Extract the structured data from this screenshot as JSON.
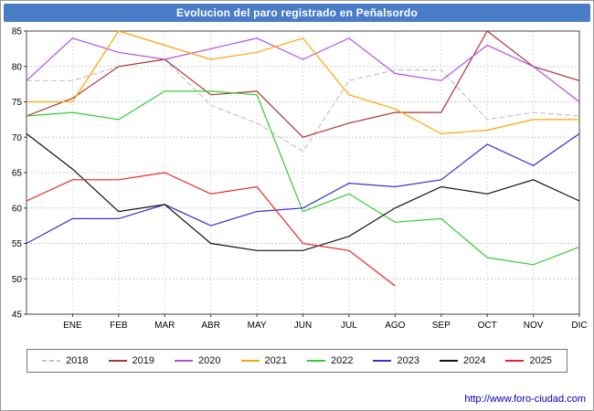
{
  "header": {
    "title": "Evolucion del paro registrado en Peñalsordo",
    "bg_color": "#4a7dc8",
    "text_color": "#ffffff"
  },
  "footer": {
    "url": "http://www.foro-ciudad.com",
    "color": "#0000bb"
  },
  "chart_data": {
    "type": "line",
    "title": "Evolucion del paro registrado en Peñalsordo",
    "ylabel": "",
    "xlabel": "",
    "ylim": [
      45,
      85
    ],
    "ytick_step": 5,
    "yticks": [
      45,
      50,
      55,
      60,
      65,
      70,
      75,
      80,
      85
    ],
    "grid": true,
    "legend_position": "bottom",
    "months": [
      "ENE",
      "FEB",
      "MAR",
      "ABR",
      "MAY",
      "JUN",
      "JUL",
      "AGO",
      "SEP",
      "OCT",
      "NOV",
      "DIC"
    ],
    "x_layout": "13 points per series: left plot edge + one per month ENE..DIC",
    "series": [
      {
        "name": "2018",
        "color": "#c4c4c4",
        "dash": true,
        "values": [
          78,
          78,
          80,
          81,
          74.5,
          72,
          68,
          78,
          79.5,
          79.5,
          72.5,
          73.5,
          73
        ]
      },
      {
        "name": "2019",
        "color": "#aa3333",
        "dash": false,
        "values": [
          73,
          75.5,
          80,
          81,
          76,
          76.5,
          70,
          72,
          73.5,
          73.5,
          85,
          80,
          78
        ]
      },
      {
        "name": "2020",
        "color": "#b450e0",
        "dash": false,
        "values": [
          78,
          84,
          82,
          81,
          82.5,
          84,
          81,
          84,
          79,
          78,
          83,
          80,
          75
        ]
      },
      {
        "name": "2021",
        "color": "#ffa500",
        "dash": false,
        "values": [
          75,
          75,
          85,
          83,
          81,
          82,
          84,
          76,
          74,
          70.5,
          71,
          72.5,
          72.5
        ]
      },
      {
        "name": "2022",
        "color": "#33cc33",
        "dash": false,
        "values": [
          73,
          73.5,
          72.5,
          76.5,
          76.5,
          76,
          59.5,
          62,
          58,
          58.5,
          53,
          52,
          54.5
        ]
      },
      {
        "name": "2023",
        "color": "#3333cc",
        "dash": false,
        "values": [
          55,
          58.5,
          58.5,
          60.5,
          57.5,
          59.5,
          60,
          63.5,
          63,
          64,
          69,
          66,
          70.5
        ]
      },
      {
        "name": "2024",
        "color": "#111111",
        "dash": false,
        "values": [
          70.5,
          65.5,
          59.5,
          60.5,
          55,
          54,
          54,
          56,
          60,
          63,
          62,
          64,
          61
        ]
      },
      {
        "name": "2025",
        "color": "#ee2222",
        "dash": false,
        "values": [
          61,
          64,
          64,
          65,
          62,
          63,
          55,
          54,
          49
        ]
      }
    ]
  }
}
